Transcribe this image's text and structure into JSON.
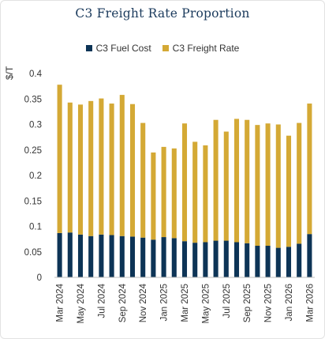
{
  "chart_data": {
    "type": "bar",
    "stacked": true,
    "title": "C3 Freight Rate Proportion",
    "ylabel": "$/T",
    "xlabel": "",
    "ylim": [
      0,
      0.4
    ],
    "yticks": [
      "0",
      "0.05",
      "0.1",
      "0.15",
      "0.2",
      "0.25",
      "0.3",
      "0.35",
      "0.4"
    ],
    "ytick_values": [
      0,
      0.05,
      0.1,
      0.15,
      0.2,
      0.25,
      0.3,
      0.35,
      0.4
    ],
    "grid": false,
    "legend_position": "top-center",
    "x_tick_labels": [
      "Mar 2024",
      "May 2024",
      "Jul 2024",
      "Sep 2024",
      "Nov 2024",
      "Jan 2025",
      "Mar 2025",
      "May 2025",
      "Jul 2025",
      "Sep 2025",
      "Nov 2025",
      "Jan 2026",
      "Mar 2026"
    ],
    "series": [
      {
        "name": "C3 Fuel Cost",
        "color": "#0d3456",
        "values": [
          0.087,
          0.088,
          0.084,
          0.081,
          0.084,
          0.083,
          0.081,
          0.08,
          0.078,
          0.074,
          0.079,
          0.077,
          0.071,
          0.068,
          0.069,
          0.072,
          0.072,
          0.069,
          0.067,
          0.062,
          0.062,
          0.058,
          0.06,
          0.066,
          0.085
        ]
      },
      {
        "name": "C3 Freight Rate",
        "color": "#d4a935",
        "values": [
          0.291,
          0.255,
          0.255,
          0.265,
          0.267,
          0.258,
          0.277,
          0.26,
          0.225,
          0.171,
          0.177,
          0.176,
          0.231,
          0.198,
          0.19,
          0.237,
          0.214,
          0.242,
          0.242,
          0.237,
          0.24,
          0.242,
          0.218,
          0.237,
          0.256
        ]
      }
    ]
  }
}
